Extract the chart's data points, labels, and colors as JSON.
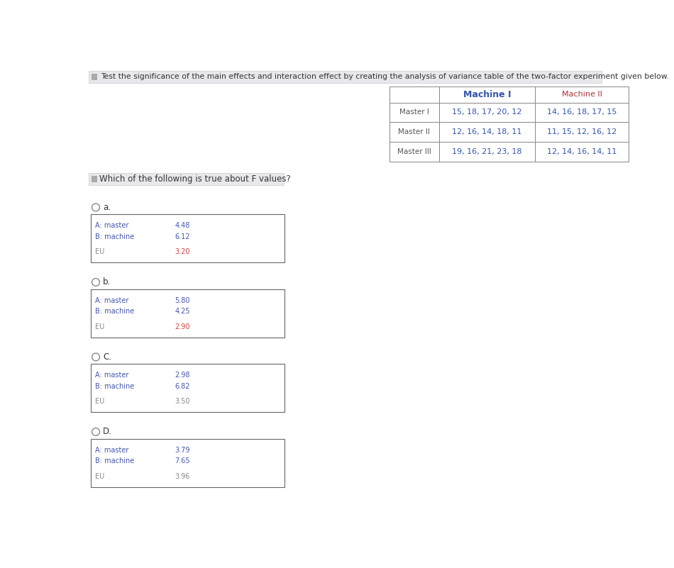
{
  "title": "Test the significance of the main effects and interaction effect by creating the analysis of variance table of the two-factor experiment given below.",
  "question": "Which of the following is true about F values?",
  "data_table": {
    "col_headers": [
      "",
      "Machine I",
      "Machine II"
    ],
    "rows": [
      [
        "Master I",
        "15, 18, 17, 20, 12",
        "14, 16, 18, 17, 15"
      ],
      [
        "Master II",
        "12, 16, 14, 18, 11",
        "11, 15, 12, 16, 12"
      ],
      [
        "Master III",
        "19, 16, 21, 23, 18",
        "12, 14, 16, 14, 11"
      ]
    ]
  },
  "options": [
    {
      "label": "a.",
      "rows": [
        {
          "name": "A: master",
          "value": "4.48",
          "name_color": "#4455aa",
          "value_color": "#4455aa"
        },
        {
          "name": "B: machine",
          "value": "6.12",
          "name_color": "#4455aa",
          "value_color": "#4455aa"
        },
        {
          "name": "EU",
          "value": "3.20",
          "name_color": "#888888",
          "value_color": "#cc4444"
        }
      ]
    },
    {
      "label": "b.",
      "rows": [
        {
          "name": "A: master",
          "value": "5.80",
          "name_color": "#4455aa",
          "value_color": "#4455aa"
        },
        {
          "name": "B: machine",
          "value": "4.25",
          "name_color": "#4455aa",
          "value_color": "#4455aa"
        },
        {
          "name": "EU",
          "value": "2.90",
          "name_color": "#888888",
          "value_color": "#cc4444"
        }
      ]
    },
    {
      "label": "C.",
      "rows": [
        {
          "name": "A: master",
          "value": "2.98",
          "name_color": "#4455aa",
          "value_color": "#4455aa"
        },
        {
          "name": "B: machine",
          "value": "6.82",
          "name_color": "#4455aa",
          "value_color": "#4455aa"
        },
        {
          "name": "EU",
          "value": "3.50",
          "name_color": "#888888",
          "value_color": "#888888"
        }
      ]
    },
    {
      "label": "D.",
      "rows": [
        {
          "name": "A: master",
          "value": "3.79",
          "name_color": "#4455aa",
          "value_color": "#4455aa"
        },
        {
          "name": "B: machine",
          "value": "7.65",
          "name_color": "#4455aa",
          "value_color": "#4455aa"
        },
        {
          "name": "EU",
          "value": "3.96",
          "name_color": "#888888",
          "value_color": "#888888"
        }
      ]
    }
  ],
  "bg_color": "#ffffff",
  "title_bg": "#e8e8ec",
  "question_bg": "#e8e8ec",
  "table_header_machine1_color": "#3355aa",
  "table_header_machine2_color": "#aa3333",
  "table_data_color": "#3355aa",
  "table_row_label_color": "#555555",
  "box_border_color": "#666666",
  "title_text_color": "#333333",
  "circle_color": "#888888",
  "label_color": "#333333"
}
